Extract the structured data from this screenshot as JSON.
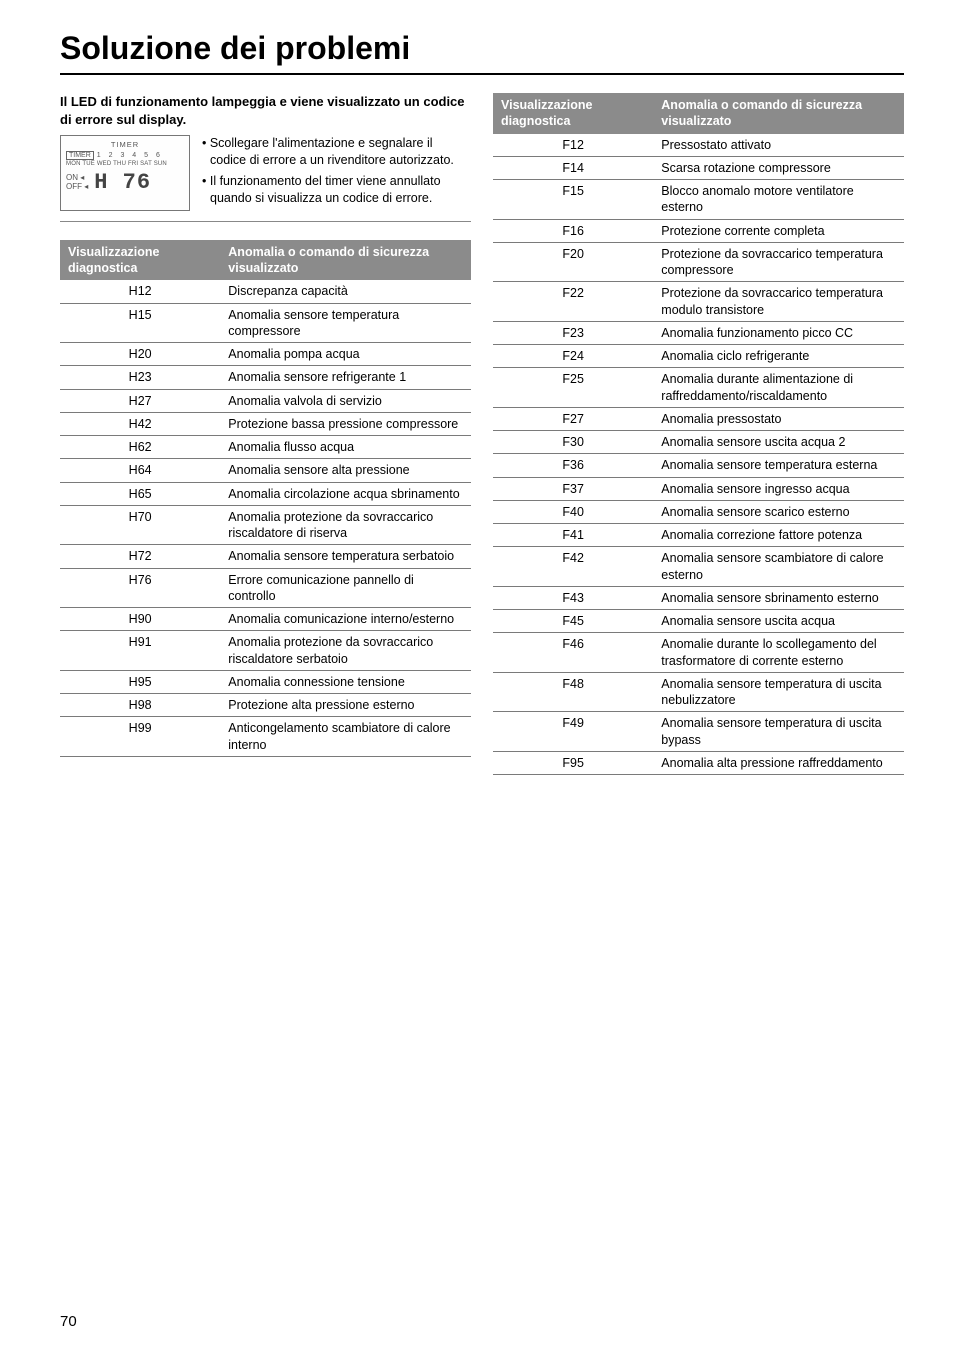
{
  "title": "Soluzione dei problemi",
  "intro_heading": "Il LED di funzionamento lampeggia e viene visualizzato un codice di errore sul display.",
  "display": {
    "timer_label": "TIMER",
    "timer_btn": "TIMER",
    "timer_nums": "1 2 3 4 5 6",
    "days": "MON TUE WED THU FRI SAT SUN",
    "on": "ON ◂",
    "off": "OFF ◂",
    "code": "H 76"
  },
  "intro_bullets": [
    "• Scollegare l'alimentazione e segnalare il codice di errore a un rivenditore autorizzato.",
    "• Il funzionamento del timer viene annullato quando si visualizza un codice di errore."
  ],
  "table_header": {
    "col1": "Visualizzazione diagnostica",
    "col2": "Anomalia o comando di sicurezza visualizzato"
  },
  "table_left": [
    {
      "code": "H12",
      "desc": "Discrepanza capacità"
    },
    {
      "code": "H15",
      "desc": "Anomalia sensore temperatura compressore"
    },
    {
      "code": "H20",
      "desc": "Anomalia pompa acqua"
    },
    {
      "code": "H23",
      "desc": "Anomalia sensore refrigerante 1"
    },
    {
      "code": "H27",
      "desc": "Anomalia valvola di servizio"
    },
    {
      "code": "H42",
      "desc": "Protezione bassa pressione compressore"
    },
    {
      "code": "H62",
      "desc": "Anomalia flusso acqua"
    },
    {
      "code": "H64",
      "desc": "Anomalia sensore alta pressione"
    },
    {
      "code": "H65",
      "desc": "Anomalia circolazione acqua sbrinamento"
    },
    {
      "code": "H70",
      "desc": "Anomalia protezione da sovraccarico riscaldatore di riserva"
    },
    {
      "code": "H72",
      "desc": "Anomalia sensore temperatura serbatoio"
    },
    {
      "code": "H76",
      "desc": "Errore comunicazione pannello di controllo"
    },
    {
      "code": "H90",
      "desc": "Anomalia comunicazione interno/esterno"
    },
    {
      "code": "H91",
      "desc": "Anomalia protezione da sovraccarico riscaldatore serbatoio"
    },
    {
      "code": "H95",
      "desc": "Anomalia connessione tensione"
    },
    {
      "code": "H98",
      "desc": "Protezione alta pressione esterno"
    },
    {
      "code": "H99",
      "desc": "Anticongelamento scambiatore di calore interno"
    }
  ],
  "table_right": [
    {
      "code": "F12",
      "desc": "Pressostato attivato"
    },
    {
      "code": "F14",
      "desc": "Scarsa rotazione compressore"
    },
    {
      "code": "F15",
      "desc": "Blocco anomalo motore ventilatore esterno"
    },
    {
      "code": "F16",
      "desc": "Protezione corrente completa"
    },
    {
      "code": "F20",
      "desc": "Protezione da sovraccarico temperatura compressore"
    },
    {
      "code": "F22",
      "desc": "Protezione da sovraccarico temperatura modulo transistore"
    },
    {
      "code": "F23",
      "desc": "Anomalia funzionamento picco CC"
    },
    {
      "code": "F24",
      "desc": "Anomalia ciclo refrigerante"
    },
    {
      "code": "F25",
      "desc": "Anomalia durante alimentazione di raffreddamento/riscaldamento"
    },
    {
      "code": "F27",
      "desc": "Anomalia pressostato"
    },
    {
      "code": "F30",
      "desc": "Anomalia sensore uscita acqua 2"
    },
    {
      "code": "F36",
      "desc": "Anomalia sensore temperatura esterna"
    },
    {
      "code": "F37",
      "desc": "Anomalia sensore ingresso acqua"
    },
    {
      "code": "F40",
      "desc": "Anomalia sensore scarico esterno"
    },
    {
      "code": "F41",
      "desc": "Anomalia correzione fattore potenza"
    },
    {
      "code": "F42",
      "desc": "Anomalia sensore scambiatore di calore esterno"
    },
    {
      "code": "F43",
      "desc": "Anomalia sensore sbrinamento esterno"
    },
    {
      "code": "F45",
      "desc": "Anomalia sensore uscita acqua"
    },
    {
      "code": "F46",
      "desc": "Anomalie durante lo scollegamento del trasformatore di corrente esterno"
    },
    {
      "code": "F48",
      "desc": "Anomalia sensore temperatura di uscita nebulizzatore"
    },
    {
      "code": "F49",
      "desc": "Anomalia sensore temperatura di uscita bypass"
    },
    {
      "code": "F95",
      "desc": "Anomalia alta pressione raffreddamento"
    }
  ],
  "page_number": "70"
}
